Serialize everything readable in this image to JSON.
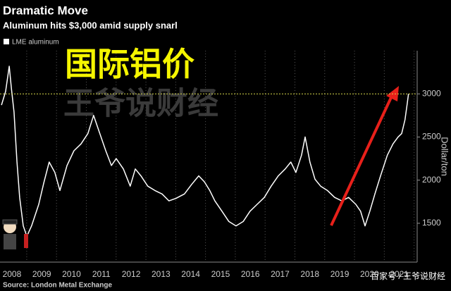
{
  "chart_data": {
    "type": "line",
    "title": "Dramatic Move",
    "subtitle": "Aluminum hits $3,000 amid supply snarl",
    "y_label": "Dollar/ton",
    "source": "Source: London Metal Exchange",
    "annotations": [
      "国际铝价",
      "王爷说财经",
      "百家号 / 王爷说财经"
    ],
    "x": [
      2007.65,
      2007.79,
      2007.91,
      2007.98,
      2008.07,
      2008.17,
      2008.26,
      2008.38,
      2008.5,
      2008.66,
      2008.9,
      2009.07,
      2009.25,
      2009.44,
      2009.61,
      2009.85,
      2010.08,
      2010.32,
      2010.55,
      2010.74,
      2010.91,
      2011.15,
      2011.34,
      2011.5,
      2011.74,
      2011.97,
      2012.14,
      2012.33,
      2012.56,
      2012.8,
      2013.04,
      2013.27,
      2013.51,
      2013.79,
      2014.03,
      2014.27,
      2014.46,
      2014.64,
      2014.81,
      2015.05,
      2015.28,
      2015.52,
      2015.76,
      2015.99,
      2016.23,
      2016.47,
      2016.7,
      2016.94,
      2017.17,
      2017.36,
      2017.53,
      2017.72,
      2017.84,
      2018.0,
      2018.17,
      2018.36,
      2018.59,
      2018.83,
      2019.07,
      2019.3,
      2019.54,
      2019.7,
      2019.85,
      2020.01,
      2020.18,
      2020.37,
      2020.6,
      2020.79,
      2020.96,
      2021.08,
      2021.19,
      2021.26,
      2021.31
    ],
    "series": [
      {
        "name": "LME aluminum",
        "color": "#ffffff",
        "values": [
          2870,
          3030,
          3320,
          3070,
          2790,
          2210,
          1800,
          1470,
          1350,
          1470,
          1720,
          1970,
          2210,
          2090,
          1880,
          2170,
          2340,
          2420,
          2540,
          2750,
          2580,
          2340,
          2170,
          2250,
          2130,
          1930,
          2130,
          2050,
          1930,
          1880,
          1840,
          1760,
          1790,
          1840,
          1950,
          2050,
          1980,
          1880,
          1760,
          1640,
          1520,
          1470,
          1520,
          1640,
          1720,
          1800,
          1930,
          2050,
          2130,
          2210,
          2090,
          2290,
          2500,
          2210,
          2010,
          1930,
          1880,
          1800,
          1760,
          1800,
          1720,
          1640,
          1470,
          1640,
          1840,
          2050,
          2290,
          2420,
          2500,
          2540,
          2700,
          2870,
          3000
        ]
      }
    ],
    "reference_line": 3000,
    "reference_color": "#d9d94a",
    "xlim": [
      2007.6,
      2021.6
    ],
    "xticks": [
      2008,
      2009,
      2010,
      2011,
      2012,
      2013,
      2014,
      2015,
      2016,
      2017,
      2018,
      2019,
      2020,
      2021
    ],
    "ylim": [
      1050,
      3500
    ],
    "yticks": [
      1500,
      2000,
      2500,
      3000
    ],
    "grid": true
  }
}
